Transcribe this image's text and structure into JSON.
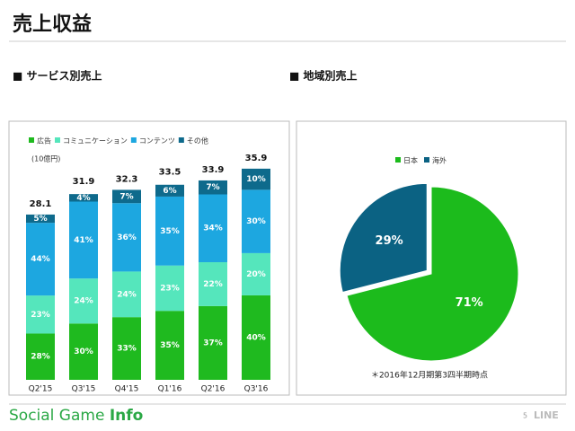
{
  "title": "売上収益",
  "footer": {
    "brand": "Social Game",
    "brand_bold": "Info",
    "page": "5",
    "logo": "LINE"
  },
  "chart_data": [
    {
      "type": "bar",
      "title": "■ サービス別売上",
      "unit_label": "(10億円)",
      "categories": [
        "Q2'15",
        "Q3'15",
        "Q4'15",
        "Q1'16",
        "Q2'16",
        "Q3'16"
      ],
      "totals": [
        28.1,
        31.9,
        32.3,
        33.5,
        33.9,
        35.9
      ],
      "series": [
        {
          "name": "広告",
          "color": "#1fba1f",
          "values": [
            28,
            30,
            33,
            35,
            37,
            40
          ],
          "value_labels": [
            "28%",
            "30%",
            "33%",
            "35%",
            "37%",
            "40%"
          ]
        },
        {
          "name": "コミュニケーション",
          "color": "#55e6bc",
          "values": [
            23,
            24,
            24,
            23,
            22,
            20
          ],
          "value_labels": [
            "23%",
            "24%",
            "24%",
            "23%",
            "22%",
            "20%"
          ]
        },
        {
          "name": "コンテンツ",
          "color": "#1da7e0",
          "values": [
            44,
            41,
            36,
            35,
            34,
            30
          ],
          "value_labels": [
            "44%",
            "41%",
            "36%",
            "35%",
            "34%",
            "30%"
          ]
        },
        {
          "name": "その他",
          "color": "#0e6a8c",
          "values": [
            5,
            4,
            7,
            6,
            7,
            10
          ],
          "value_labels": [
            "5%",
            "4%",
            "7%",
            "6%",
            "7%",
            "10%"
          ]
        }
      ]
    },
    {
      "type": "pie",
      "title": "■ 地域別売上",
      "note": "＊2016年12月期第3四半期時点",
      "categories": [
        "日本",
        "海外"
      ],
      "values": [
        71,
        29
      ],
      "value_labels": [
        "71%",
        "29%"
      ],
      "colors": [
        "#1cbb1c",
        "#0b6283"
      ]
    }
  ]
}
